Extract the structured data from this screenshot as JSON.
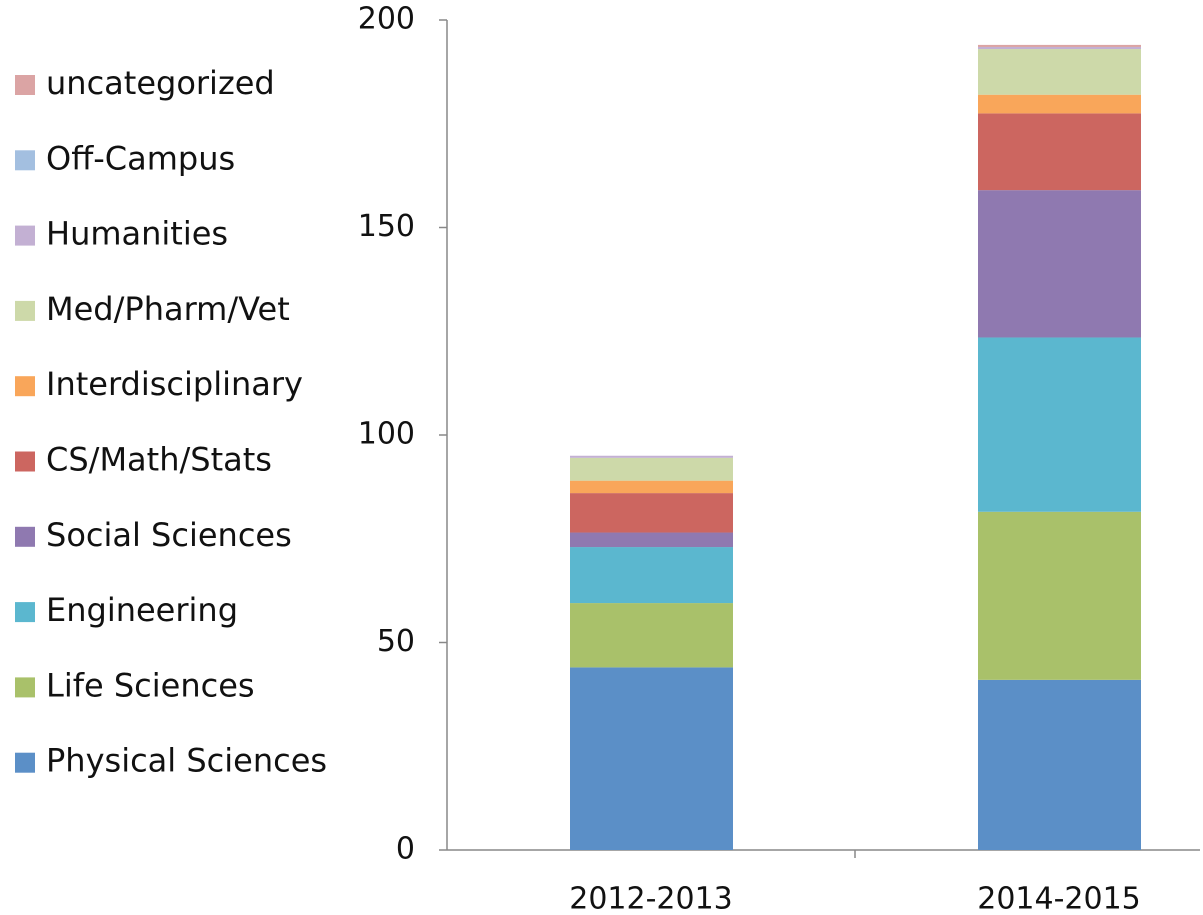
{
  "chart_data": {
    "type": "stacked_bar",
    "categories": [
      "2012-2013",
      "2014-2015"
    ],
    "series": [
      {
        "name": "Physical Sciences",
        "color": "#5b8fc7",
        "values": [
          44,
          41
        ]
      },
      {
        "name": "Life Sciences",
        "color": "#a9c16a",
        "values": [
          15.5,
          40.5
        ]
      },
      {
        "name": "Engineering",
        "color": "#5bb7cf",
        "values": [
          13.5,
          42
        ]
      },
      {
        "name": "Social Sciences",
        "color": "#8f79b0",
        "values": [
          3.5,
          35.5
        ]
      },
      {
        "name": "CS/Math/Stats",
        "color": "#cc6660",
        "values": [
          9.5,
          18.5
        ]
      },
      {
        "name": "Interdisciplinary",
        "color": "#f9a65a",
        "values": [
          3,
          4.5
        ]
      },
      {
        "name": "Med/Pharm/Vet",
        "color": "#cdd9a9",
        "values": [
          5.5,
          11
        ]
      },
      {
        "name": "Humanities",
        "color": "#c3b0d3",
        "values": [
          0.5,
          0.5
        ]
      },
      {
        "name": "Off-Campus",
        "color": "#a3bfe0",
        "values": [
          0,
          0
        ]
      },
      {
        "name": "uncategorized",
        "color": "#dba4a4",
        "values": [
          0,
          0.5
        ]
      }
    ],
    "ylim": [
      0,
      200
    ],
    "yticks": [
      0,
      50,
      100,
      150,
      200
    ],
    "grid": false,
    "legend": "left"
  }
}
